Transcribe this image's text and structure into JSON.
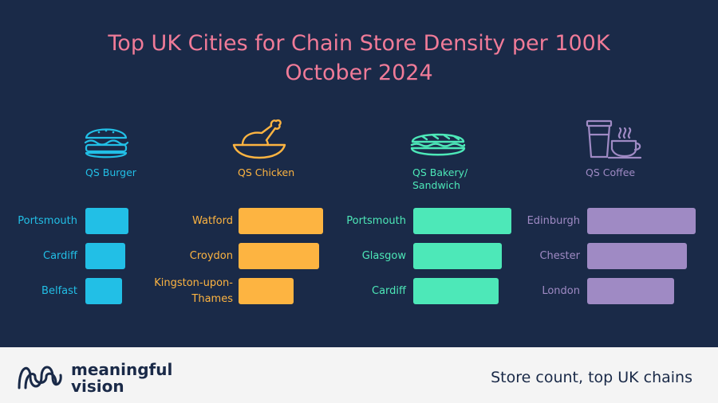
{
  "title_line1": "Top UK Cities for Chain Store Density per 100K",
  "title_line2": "October 2024",
  "footer": {
    "logo_line1": "meaningful",
    "logo_line2": "vision",
    "note": "Store count, top UK chains"
  },
  "colors": {
    "background": "#1a2a48",
    "title": "#f07b98",
    "burger": "#22bfe6",
    "chicken": "#fdb441",
    "bakery": "#4de8b8",
    "coffee": "#9f8ac4"
  },
  "chart_data": [
    {
      "type": "bar",
      "label_line1": "QS Burger",
      "label_line2": "",
      "icon": "burger-icon",
      "categories": [
        "Portsmouth",
        "Cardiff",
        "Belfast"
      ],
      "values": [
        1.0,
        0.92,
        0.85
      ]
    },
    {
      "type": "bar",
      "label_line1": "QS Chicken",
      "label_line2": "",
      "icon": "roast-chicken-icon",
      "categories": [
        "Watford",
        "Croydon",
        "Kingston-upon-Thames"
      ],
      "values": [
        1.0,
        0.95,
        0.65
      ]
    },
    {
      "type": "bar",
      "label_line1": "QS Bakery/",
      "label_line2": "Sandwich",
      "icon": "sandwich-icon",
      "categories": [
        "Portsmouth",
        "Glasgow",
        "Cardiff"
      ],
      "values": [
        1.0,
        0.9,
        0.87
      ]
    },
    {
      "type": "bar",
      "label_line1": "QS Coffee",
      "label_line2": "",
      "icon": "coffee-cup-icon",
      "categories": [
        "Edinburgh",
        "Chester",
        "London"
      ],
      "values": [
        1.0,
        0.92,
        0.8
      ]
    }
  ]
}
